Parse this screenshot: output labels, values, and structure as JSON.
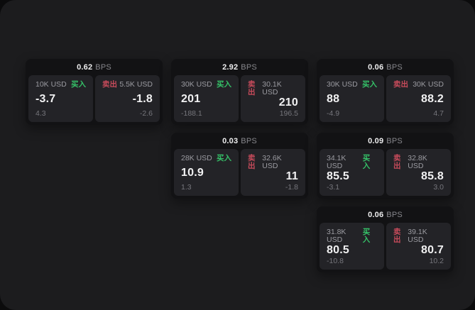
{
  "labels": {
    "buy": "买入",
    "sell": "卖出",
    "bps": "BPS"
  },
  "colors": {
    "buy_green": "#35c268",
    "sell_red": "#c74b5b",
    "window_bg": "#1c1c1e",
    "card_bg": "#121214",
    "panel_bg": "#232327",
    "value_text": "#f1f1f2",
    "muted_text": "#9b9ba1",
    "dim_text": "#76767c"
  },
  "cards": [
    {
      "bps": "0.62",
      "buy": {
        "amount": "10K USD",
        "value": "-3.7",
        "delta": "4.3"
      },
      "sell": {
        "amount": "5.5K USD",
        "value": "-1.8",
        "delta": "-2.6"
      }
    },
    {
      "bps": "2.92",
      "buy": {
        "amount": "30K USD",
        "value": "201",
        "delta": "-188.1"
      },
      "sell": {
        "amount": "30.1K USD",
        "value": "210",
        "delta": "196.5"
      }
    },
    {
      "bps": "0.06",
      "buy": {
        "amount": "30K USD",
        "value": "88",
        "delta": "-4.9"
      },
      "sell": {
        "amount": "30K USD",
        "value": "88.2",
        "delta": "4.7"
      }
    },
    {
      "bps": "0.03",
      "buy": {
        "amount": "28K USD",
        "value": "10.9",
        "delta": "1.3"
      },
      "sell": {
        "amount": "32.6K USD",
        "value": "11",
        "delta": "-1.8"
      }
    },
    {
      "bps": "0.09",
      "buy": {
        "amount": "34.1K USD",
        "value": "85.5",
        "delta": "-3.1"
      },
      "sell": {
        "amount": "32.8K USD",
        "value": "85.8",
        "delta": "3.0"
      }
    },
    {
      "bps": "0.06",
      "buy": {
        "amount": "31.8K USD",
        "value": "80.5",
        "delta": "-10.8"
      },
      "sell": {
        "amount": "39.1K USD",
        "value": "80.7",
        "delta": "10.2"
      }
    }
  ]
}
